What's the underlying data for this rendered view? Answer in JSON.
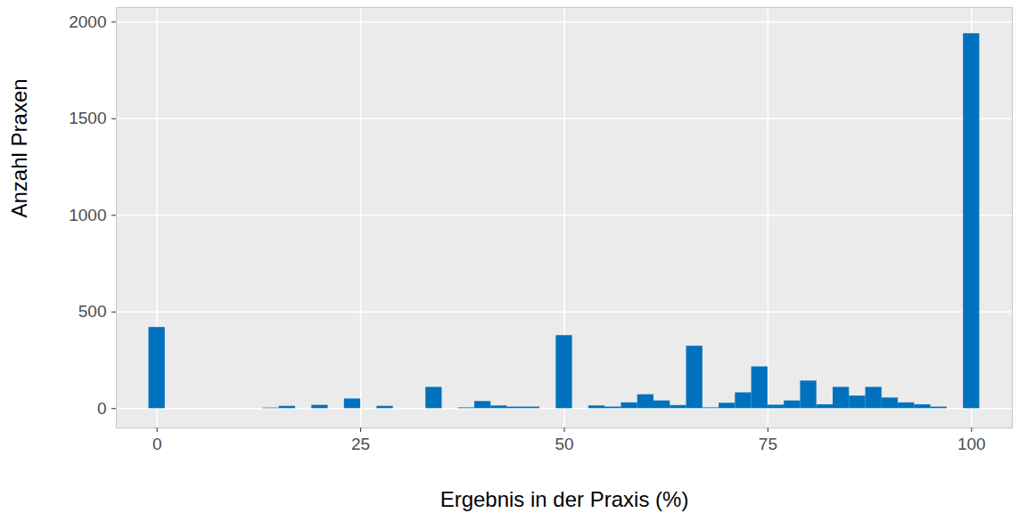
{
  "chart_data": {
    "type": "histogram",
    "x_label": "Ergebnis in der Praxis (%)",
    "y_label": "Anzahl Praxen",
    "bins": [
      -1,
      1,
      3,
      5,
      7,
      9,
      11,
      13,
      15,
      17,
      19,
      21,
      23,
      25,
      27,
      29,
      31,
      33,
      35,
      37,
      39,
      41,
      43,
      45,
      47,
      49,
      51,
      53,
      55,
      57,
      59,
      61,
      63,
      65,
      67,
      69,
      71,
      73,
      75,
      77,
      79,
      81,
      83,
      85,
      87,
      89,
      91,
      93,
      95,
      97,
      99,
      101
    ],
    "counts": [
      420,
      0,
      0,
      0,
      0,
      0,
      0,
      3,
      12,
      0,
      17,
      0,
      50,
      0,
      12,
      0,
      0,
      110,
      0,
      4,
      37,
      14,
      8,
      8,
      0,
      378,
      0,
      14,
      8,
      30,
      72,
      40,
      16,
      323,
      4,
      28,
      82,
      216,
      18,
      40,
      143,
      20,
      110,
      65,
      110,
      55,
      30,
      20,
      8,
      0,
      1940
    ],
    "color": "#0072bd",
    "xlim": [
      -5,
      105
    ],
    "ylim": [
      -100,
      2075
    ],
    "xticks": [
      0,
      25,
      50,
      75,
      100
    ],
    "yticks": [
      0,
      500,
      1000,
      1500,
      2000
    ],
    "grid": true
  }
}
